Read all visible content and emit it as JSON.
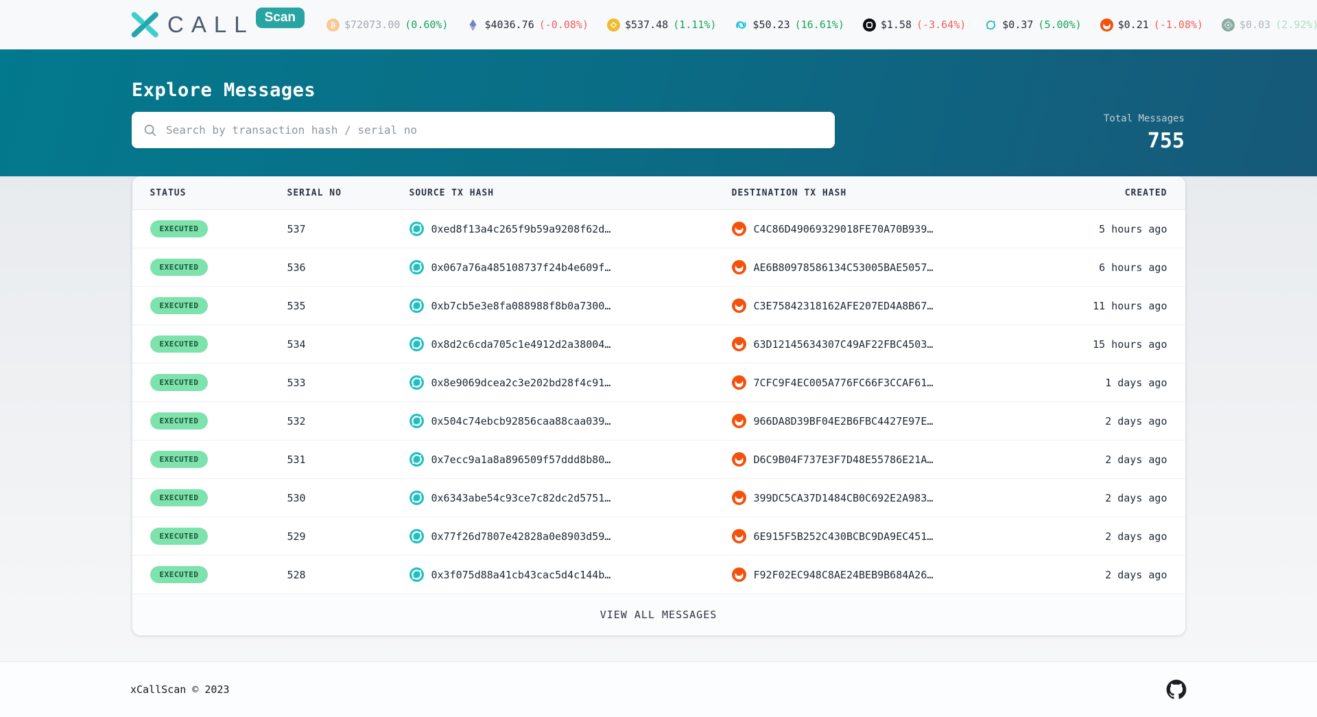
{
  "navbar": {
    "logo": {
      "name": "CALL",
      "badge": "Scan"
    },
    "tickers": [
      {
        "symbol": "btc",
        "price": "$72073.00",
        "change": "(0.60%)",
        "direction": "up",
        "fade": "partial"
      },
      {
        "symbol": "eth",
        "price": "$4036.76",
        "change": "(-0.08%)",
        "direction": "down",
        "fade": "none"
      },
      {
        "symbol": "bnb",
        "price": "$537.48",
        "change": "(1.11%)",
        "direction": "up",
        "fade": "none"
      },
      {
        "symbol": "inj",
        "price": "$50.23",
        "change": "(16.61%)",
        "direction": "up",
        "fade": "none"
      },
      {
        "symbol": "arch",
        "price": "$1.58",
        "change": "(-3.64%)",
        "direction": "down",
        "fade": "none"
      },
      {
        "symbol": "icx",
        "price": "$0.37",
        "change": "(5.00%)",
        "direction": "up",
        "fade": "none"
      },
      {
        "symbol": "hvh",
        "price": "$0.21",
        "change": "(-1.08%)",
        "direction": "down",
        "fade": "none"
      },
      {
        "symbol": "cft",
        "price": "$0.03",
        "change": "(2.92%)",
        "direction": "up",
        "fade": "full"
      }
    ]
  },
  "hero": {
    "title": "Explore Messages",
    "search_placeholder": "Search by transaction hash / serial no",
    "total_label": "Total Messages",
    "total_value": "755"
  },
  "table": {
    "columns": [
      "STATUS",
      "SERIAL NO",
      "SOURCE TX HASH",
      "DESTINATION TX HASH",
      "CREATED"
    ],
    "rows": [
      {
        "status": "EXECUTED",
        "serial": "537",
        "src": "0xed8f13a4c265f9b59a9208f62d…",
        "dst": "C4C86D49069329018FE70A70B939…",
        "created": "5 hours ago"
      },
      {
        "status": "EXECUTED",
        "serial": "536",
        "src": "0x067a76a485108737f24b4e609f…",
        "dst": "AE6B80978586134C53005BAE5057…",
        "created": "6 hours ago"
      },
      {
        "status": "EXECUTED",
        "serial": "535",
        "src": "0xb7cb5e3e8fa088988f8b0a7300…",
        "dst": "C3E75842318162AFE207ED4A8B67…",
        "created": "11 hours ago"
      },
      {
        "status": "EXECUTED",
        "serial": "534",
        "src": "0x8d2c6cda705c1e4912d2a38004…",
        "dst": "63D12145634307C49AF22FBC4503…",
        "created": "15 hours ago"
      },
      {
        "status": "EXECUTED",
        "serial": "533",
        "src": "0x8e9069dcea2c3e202bd28f4c91…",
        "dst": "7CFC9F4EC005A776FC66F3CCAF61…",
        "created": "1 days ago"
      },
      {
        "status": "EXECUTED",
        "serial": "532",
        "src": "0x504c74ebcb92856caa88caa039…",
        "dst": "966DA8D39BF04E2B6FBC4427E97E…",
        "created": "2 days ago"
      },
      {
        "status": "EXECUTED",
        "serial": "531",
        "src": "0x7ecc9a1a8a896509f57ddd8b80…",
        "dst": "D6C9B04F737E3F7D48E55786E21A…",
        "created": "2 days ago"
      },
      {
        "status": "EXECUTED",
        "serial": "530",
        "src": "0x6343abe54c93ce7c82dc2d5751…",
        "dst": "399DC5CA37D1484CB0C692E2A983…",
        "created": "2 days ago"
      },
      {
        "status": "EXECUTED",
        "serial": "529",
        "src": "0x77f26d7807e42828a0e8903d59…",
        "dst": "6E915F5B252C430BCBC9DA9EC451…",
        "created": "2 days ago"
      },
      {
        "status": "EXECUTED",
        "serial": "528",
        "src": "0x3f075d88a41cb43cac5d4c144b…",
        "dst": "F92F02EC948C8AE24BEB9B684A26…",
        "created": "2 days ago"
      }
    ],
    "view_all_label": "VIEW ALL MESSAGES"
  },
  "footer": {
    "copyright": "xCallScan © 2023"
  },
  "colors": {
    "accent_teal": "#28a5a2",
    "hero_gradient_start": "#03798d",
    "hero_gradient_end": "#175878",
    "status_executed_bg": "#7de2ab",
    "status_executed_text": "#1d5038",
    "change_up": "#17a35b",
    "change_down": "#f25f5f",
    "icon_network_teal": "#20bfc1",
    "havah_orange": "#f4510c"
  }
}
